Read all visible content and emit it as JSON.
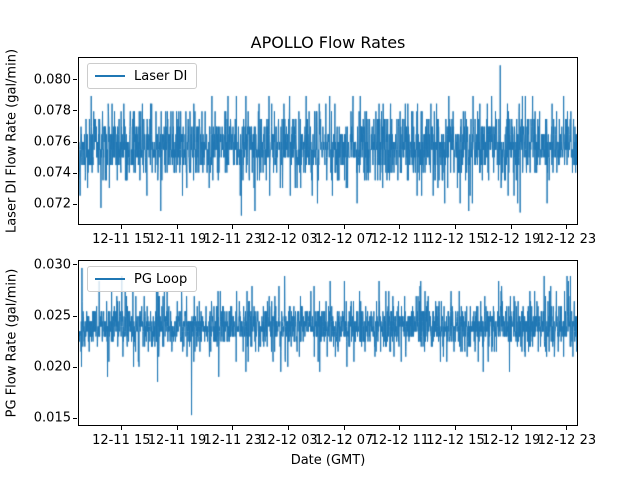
{
  "figure": {
    "title": "APOLLO Flow Rates",
    "xlabel": "Date (GMT)",
    "background_color": "#ffffff",
    "text_color": "#000000",
    "accent_color": "#1f77b4"
  },
  "chart_data": [
    {
      "type": "line",
      "series_name": "Laser DI",
      "legend_label": "Laser DI",
      "legend_position": "upper left",
      "title": "APOLLO Flow Rates",
      "xlabel": "",
      "ylabel": "Laser DI Flow Rate (gal/min)",
      "line_color": "#1f77b4",
      "grid": false,
      "ylim": [
        0.07065,
        0.08148
      ],
      "y_ticks": [
        0.072,
        0.074,
        0.076,
        0.078,
        0.08
      ],
      "y_tick_labels": [
        "0.072",
        "0.074",
        "0.076",
        "0.078",
        "0.080"
      ],
      "x_tick_labels": [
        "12-11 15",
        "12-11 19",
        "12-11 23",
        "12-12 03",
        "12-12 07",
        "12-12 11",
        "12-12 15",
        "12-12 19",
        "12-12 23"
      ],
      "x_tick_first_frac": 0.0866,
      "x_tick_step_frac": 0.1114,
      "summary": {
        "baseline": 0.0755,
        "dense_band": [
          0.075,
          0.0765
        ],
        "typical_high_spikes": 0.079,
        "typical_low_spikes": 0.072,
        "max": 0.081,
        "min": 0.0712
      },
      "noise_model": {
        "seed": 13,
        "n_points": 2200,
        "baseline": 0.0755,
        "quant_step": 0.0005,
        "level_offsets": [
          -8,
          -7,
          -6,
          -5,
          -4,
          -3,
          -2,
          -1,
          0,
          1,
          2,
          3,
          4,
          5,
          6,
          7
        ],
        "level_weights": [
          0.0012,
          0.0025,
          0.005,
          0.01,
          0.022,
          0.045,
          0.085,
          0.15,
          0.21,
          0.16,
          0.13,
          0.08,
          0.045,
          0.028,
          0.016,
          0.0075
        ],
        "extremes": [
          {
            "frac": 0.846,
            "value": 0.081
          },
          {
            "frac": 0.044,
            "value": 0.0717
          },
          {
            "frac": 0.326,
            "value": 0.0712
          },
          {
            "frac": 0.886,
            "value": 0.0714
          }
        ]
      }
    },
    {
      "type": "line",
      "series_name": "PG Loop",
      "legend_label": "PG Loop",
      "legend_position": "upper left",
      "title": "",
      "xlabel": "Date (GMT)",
      "ylabel": "PG Flow Rate (gal/min)",
      "line_color": "#1f77b4",
      "grid": false,
      "ylim": [
        0.01422,
        0.03049
      ],
      "y_ticks": [
        0.015,
        0.02,
        0.025,
        0.03
      ],
      "y_tick_labels": [
        "0.015",
        "0.020",
        "0.025",
        "0.030"
      ],
      "x_tick_labels": [
        "12-11 15",
        "12-11 19",
        "12-11 23",
        "12-12 03",
        "12-12 07",
        "12-12 11",
        "12-12 15",
        "12-12 19",
        "12-12 23"
      ],
      "x_tick_first_frac": 0.0866,
      "x_tick_step_frac": 0.1114,
      "summary": {
        "baseline": 0.024,
        "dense_band": [
          0.0225,
          0.0255
        ],
        "typical_high_spikes": 0.028,
        "typical_low_spikes": 0.02,
        "max": 0.0298,
        "min": 0.0152
      },
      "noise_model": {
        "seed": 29,
        "n_points": 2200,
        "baseline": 0.024,
        "quant_step": 0.0005,
        "level_offsets": [
          -10,
          -9,
          -8,
          -7,
          -6,
          -5,
          -4,
          -3,
          -2,
          -1,
          0,
          1,
          2,
          3,
          4,
          5,
          6,
          7,
          8,
          9,
          10
        ],
        "level_weights": [
          0.0012,
          0.0018,
          0.0035,
          0.006,
          0.011,
          0.019,
          0.038,
          0.07,
          0.105,
          0.15,
          0.185,
          0.15,
          0.105,
          0.068,
          0.036,
          0.018,
          0.01,
          0.0055,
          0.003,
          0.0017,
          0.0012
        ],
        "extremes": [
          {
            "frac": 0.226,
            "value": 0.0152
          },
          {
            "frac": 0.158,
            "value": 0.0185
          },
          {
            "frac": 0.006,
            "value": 0.0298
          },
          {
            "frac": 0.934,
            "value": 0.029
          }
        ]
      }
    }
  ]
}
